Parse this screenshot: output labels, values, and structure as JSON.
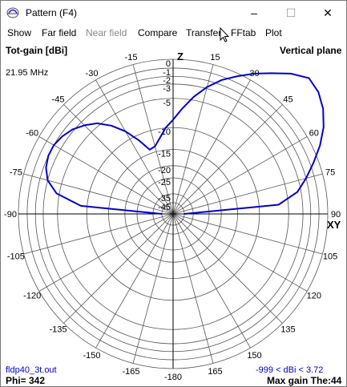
{
  "window": {
    "title": "Pattern  (F4)",
    "controls": {
      "minimize": "–",
      "maximize": "☐",
      "close": "✕"
    }
  },
  "menu": {
    "items": [
      {
        "label": "Show",
        "enabled": true
      },
      {
        "label": "Far field",
        "enabled": true
      },
      {
        "label": "Near field",
        "enabled": false
      },
      {
        "label": "Compare",
        "enabled": true
      },
      {
        "label": "Transfer",
        "enabled": true
      },
      {
        "label": "FFtab",
        "enabled": true
      },
      {
        "label": "Plot",
        "enabled": true
      }
    ]
  },
  "plot": {
    "gain_label": "Tot-gain [dBi]",
    "plane_label": "Vertical plane",
    "frequency": "21.95 MHz",
    "z_label": "Z",
    "xy_label": "XY",
    "radial_ticks": [
      "0",
      "-1",
      "-2",
      "-3",
      "-5",
      "-10",
      "-15",
      "-20",
      "-25",
      "-35",
      "-45"
    ],
    "angle_labels": {
      "top": [
        "-15",
        "-30",
        "-45",
        "-60",
        "-75",
        "-90",
        "-105",
        "-120",
        "-135",
        "-150",
        "-165",
        "-180"
      ],
      "right": [
        "15",
        "30",
        "45",
        "60",
        "75",
        "90",
        "105",
        "120",
        "135",
        "150",
        "165"
      ]
    },
    "filename": "fldp40_3t.out",
    "phi": "Phi= 342",
    "range": "-999 < dBi < 3.72",
    "max_gain": "Max gain The:44",
    "trace_color": "#0000cc"
  },
  "chart_data": {
    "type": "polar",
    "theta_deg": [
      -90,
      -85,
      -80,
      -75,
      -70,
      -65,
      -60,
      -55,
      -50,
      -45,
      -40,
      -35,
      -30,
      -25,
      -20,
      -15,
      -10,
      -5,
      0,
      5,
      10,
      15,
      20,
      25,
      30,
      35,
      40,
      45,
      50,
      55,
      60,
      65,
      70,
      75,
      80,
      85,
      90
    ],
    "gain_dbi": [
      -45,
      -8.8,
      -4.6,
      -3.0,
      -2.3,
      -2.0,
      -2.0,
      -2.3,
      -2.8,
      -3.6,
      -4.6,
      -6.2,
      -8.3,
      -11,
      -14,
      -13.6,
      -12,
      -10,
      -8.5,
      -6.5,
      -4.5,
      -2.8,
      -1.4,
      -0.3,
      0.8,
      1.8,
      2.9,
      3.72,
      3.5,
      2.9,
      2.0,
      0.8,
      -0.6,
      -2.0,
      -3.5,
      -6.5,
      -45
    ],
    "radial_ticks_dbi": [
      0,
      -1,
      -2,
      -3,
      -5,
      -10,
      -15,
      -20,
      -25,
      -35,
      -45
    ],
    "angle_range": [
      -180,
      180
    ],
    "grid": true
  }
}
